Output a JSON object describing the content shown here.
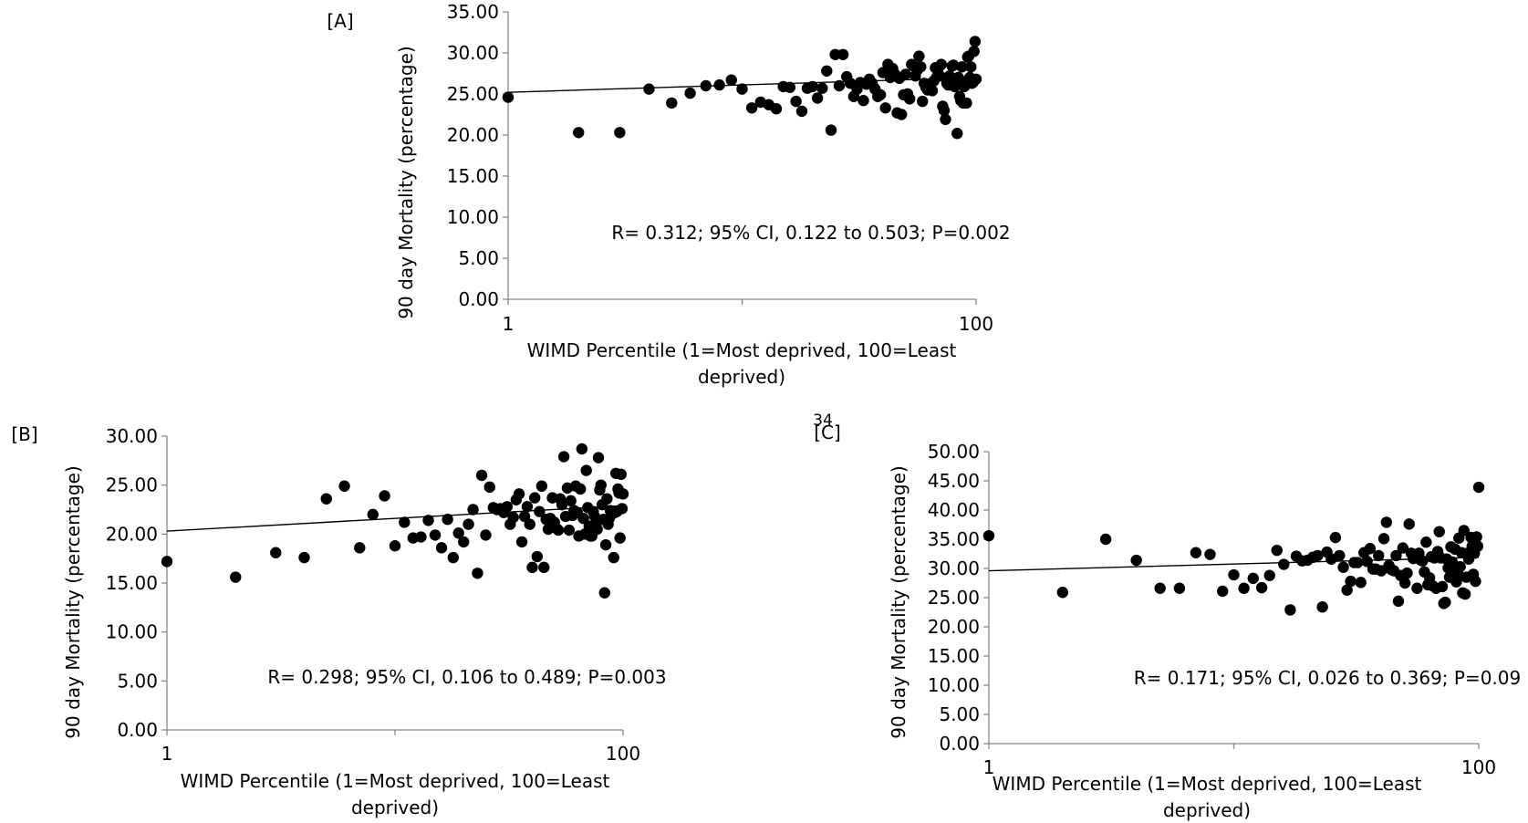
{
  "page_number": "34",
  "chart_data": [
    {
      "panel_label": "[A]",
      "type": "scatter",
      "xlabel": "WIMD Percentile (1=Most deprived, 100=Least deprived)",
      "xlabel_lines": [
        "WIMD Percentile (1=Most deprived, 100=Least",
        "deprived)"
      ],
      "ylabel": "90 day Mortality  (percentage)",
      "x_scale": "log",
      "xlim": [
        1,
        100
      ],
      "ylim": [
        0,
        35
      ],
      "x_ticks": [
        "1",
        "100"
      ],
      "y_ticks": [
        "0.00",
        "5.00",
        "10.00",
        "15.00",
        "20.00",
        "25.00",
        "30.00",
        "35.00"
      ],
      "annotation": "R= 0.312; 95% CI, 0.122 to 0.503; P=0.002",
      "grid": false,
      "legend": "none",
      "trendline": {
        "type": "linear",
        "y_at_x1": 25.2,
        "y_at_x100": 27.0
      },
      "series": [
        {
          "x": [
            1,
            2,
            3,
            4,
            5,
            6,
            7,
            8,
            9,
            10,
            11,
            12,
            13,
            14,
            15,
            16,
            17,
            18,
            19,
            20,
            21,
            22,
            23,
            24,
            25,
            26,
            27,
            28,
            29,
            30,
            31,
            32,
            33,
            34,
            35,
            36,
            37,
            38,
            39,
            40,
            41,
            42,
            43,
            44,
            45,
            46,
            47,
            48,
            49,
            50,
            51,
            52,
            53,
            54,
            55,
            56,
            57,
            58,
            59,
            60,
            61,
            62,
            63,
            64,
            65,
            66,
            67,
            68,
            69,
            70,
            71,
            72,
            73,
            74,
            75,
            76,
            77,
            78,
            79,
            80,
            81,
            82,
            83,
            84,
            85,
            86,
            87,
            88,
            89,
            90,
            91,
            92,
            93,
            94,
            95,
            96,
            97,
            98,
            99,
            100
          ],
          "y": [
            24.6,
            20.3,
            20.3,
            25.6,
            23.9,
            25.1,
            26.0,
            26.1,
            26.7,
            25.6,
            23.3,
            24.0,
            23.7,
            23.2,
            25.9,
            25.8,
            24.1,
            22.9,
            25.7,
            25.9,
            24.5,
            25.7,
            27.8,
            20.6,
            29.8,
            26.0,
            29.8,
            27.1,
            26.3,
            24.7,
            25.6,
            26.4,
            24.2,
            26.2,
            26.8,
            26.3,
            25.6,
            24.7,
            24.9,
            27.6,
            23.3,
            28.6,
            27.0,
            28.1,
            27.4,
            22.7,
            26.9,
            22.5,
            24.9,
            27.4,
            25.0,
            24.4,
            28.6,
            28.4,
            27.2,
            27.9,
            29.6,
            28.3,
            24.1,
            26.3,
            25.8,
            25.5,
            25.9,
            26.2,
            25.4,
            26.6,
            28.2,
            27.1,
            28.2,
            27.2,
            28.6,
            23.5,
            23.0,
            21.9,
            26.3,
            26.1,
            27.2,
            26.1,
            28.4,
            28.5,
            25.9,
            26.4,
            20.2,
            27.0,
            24.7,
            24.2,
            28.3,
            23.9,
            25.9,
            26.4,
            23.9,
            29.5,
            29.6,
            27.0,
            28.3,
            26.3,
            26.4,
            30.2,
            31.4,
            26.8
          ]
        }
      ]
    },
    {
      "panel_label": "[B]",
      "type": "scatter",
      "xlabel": "WIMD Percentile (1=Most deprived, 100=Least deprived)",
      "xlabel_lines": [
        "WIMD Percentile (1=Most deprived, 100=Least",
        "deprived)"
      ],
      "ylabel": "90 day Mortality (percentage)",
      "x_scale": "log",
      "xlim": [
        1,
        100
      ],
      "ylim": [
        0,
        30
      ],
      "x_ticks": [
        "1",
        "100"
      ],
      "y_ticks": [
        "0.00",
        "5.00",
        "10.00",
        "15.00",
        "20.00",
        "25.00",
        "30.00"
      ],
      "annotation": "R= 0.298; 95% CI, 0.106 to 0.489; P=0.003",
      "grid": false,
      "legend": "none",
      "trendline": {
        "type": "linear",
        "y_at_x1": 20.3,
        "y_at_x100": 22.9
      },
      "series": [
        {
          "x": [
            1,
            2,
            3,
            4,
            5,
            6,
            7,
            8,
            9,
            10,
            11,
            12,
            13,
            14,
            15,
            16,
            17,
            18,
            19,
            20,
            21,
            22,
            23,
            24,
            25,
            26,
            27,
            28,
            29,
            30,
            31,
            32,
            33,
            34,
            35,
            36,
            37,
            38,
            39,
            40,
            41,
            42,
            43,
            44,
            45,
            46,
            47,
            48,
            49,
            50,
            51,
            52,
            53,
            54,
            55,
            56,
            57,
            58,
            59,
            60,
            61,
            62,
            63,
            64,
            65,
            66,
            67,
            68,
            69,
            70,
            71,
            72,
            73,
            74,
            75,
            76,
            77,
            78,
            79,
            80,
            81,
            82,
            83,
            84,
            85,
            86,
            87,
            88,
            89,
            90,
            91,
            92,
            93,
            94,
            95,
            96,
            97,
            98,
            99,
            100
          ],
          "y": [
            17.2,
            15.6,
            18.1,
            17.6,
            23.6,
            24.9,
            18.6,
            22.0,
            23.9,
            18.8,
            21.2,
            19.6,
            19.7,
            21.4,
            19.9,
            18.6,
            21.5,
            17.6,
            20.1,
            19.2,
            21.0,
            22.5,
            16.0,
            26.0,
            19.9,
            24.8,
            22.7,
            22.5,
            22.6,
            22.2,
            22.8,
            21.0,
            21.7,
            23.5,
            24.1,
            19.2,
            21.8,
            22.8,
            21.0,
            16.6,
            23.7,
            17.7,
            22.3,
            24.9,
            16.6,
            21.5,
            20.5,
            21.6,
            23.7,
            21.2,
            20.6,
            20.4,
            23.6,
            23.0,
            27.9,
            21.8,
            24.7,
            20.4,
            23.4,
            21.9,
            22.4,
            24.9,
            22.2,
            19.8,
            24.6,
            28.7,
            21.6,
            20.0,
            26.5,
            22.7,
            20.8,
            19.8,
            19.8,
            22.3,
            21.8,
            20.9,
            20.5,
            27.8,
            24.5,
            25.0,
            23.0,
            21.5,
            14.0,
            18.9,
            23.6,
            21.0,
            21.6,
            22.4,
            22.0,
            22.3,
            17.6,
            22.2,
            26.2,
            22.3,
            24.6,
            24.2,
            19.6,
            26.1,
            22.6,
            24.1
          ]
        }
      ]
    },
    {
      "panel_label": "[C]",
      "type": "scatter",
      "xlabel": "WIMD Percentile (1=Most deprived, 100=Least deprived)",
      "xlabel_lines": [
        "WIMD Percentile (1=Most deprived, 100=Least",
        "deprived)"
      ],
      "ylabel": "90 day Mortality (percentage)",
      "x_scale": "log",
      "xlim": [
        1,
        100
      ],
      "ylim": [
        0,
        50
      ],
      "x_ticks": [
        "1",
        "100"
      ],
      "y_ticks": [
        "0.00",
        "5.00",
        "10.00",
        "15.00",
        "20.00",
        "25.00",
        "30.00",
        "35.00",
        "40.00",
        "45.00",
        "50.00"
      ],
      "annotation": "R= 0.171; 95% CI, 0.026 to 0.369; P=0.09",
      "grid": false,
      "legend": "none",
      "trendline": {
        "type": "linear",
        "y_at_x1": 29.6,
        "y_at_x100": 31.9
      },
      "series": [
        {
          "x": [
            1,
            2,
            3,
            4,
            5,
            6,
            7,
            8,
            9,
            10,
            11,
            12,
            13,
            14,
            15,
            16,
            17,
            18,
            19,
            20,
            21,
            22,
            23,
            24,
            25,
            26,
            27,
            28,
            29,
            30,
            31,
            32,
            33,
            34,
            35,
            36,
            37,
            38,
            39,
            40,
            41,
            42,
            43,
            44,
            45,
            46,
            47,
            48,
            49,
            50,
            51,
            52,
            53,
            54,
            55,
            56,
            57,
            58,
            59,
            60,
            61,
            62,
            63,
            64,
            65,
            66,
            67,
            68,
            69,
            70,
            71,
            72,
            73,
            74,
            75,
            76,
            77,
            78,
            79,
            80,
            81,
            82,
            83,
            84,
            85,
            86,
            87,
            88,
            89,
            90,
            91,
            92,
            93,
            94,
            95,
            96,
            97,
            98,
            99,
            100
          ],
          "y": [
            35.6,
            25.9,
            35.0,
            31.4,
            26.6,
            26.6,
            32.7,
            32.4,
            26.1,
            28.9,
            26.6,
            28.3,
            26.7,
            28.8,
            33.1,
            30.7,
            22.9,
            32.1,
            31.3,
            31.4,
            31.9,
            32.2,
            23.4,
            32.8,
            31.6,
            35.3,
            32.2,
            30.2,
            26.3,
            27.8,
            31.0,
            31.0,
            27.6,
            32.7,
            31.2,
            33.4,
            29.9,
            29.9,
            32.2,
            29.6,
            35.1,
            37.9,
            30.5,
            29.8,
            29.6,
            32.2,
            24.4,
            28.8,
            33.5,
            27.5,
            29.2,
            37.6,
            32.6,
            31.7,
            32.1,
            26.6,
            32.6,
            31.4,
            31.3,
            29.4,
            34.5,
            27.2,
            28.4,
            32.0,
            27.0,
            31.8,
            26.6,
            32.9,
            36.3,
            31.8,
            26.9,
            24.0,
            24.2,
            31.6,
            30.1,
            28.5,
            33.7,
            31.1,
            30.3,
            33.3,
            27.7,
            29.1,
            35.2,
            30.3,
            32.7,
            25.8,
            36.5,
            25.6,
            28.5,
            32.6,
            31.6,
            32.3,
            35.3,
            33.8,
            29.0,
            32.6,
            27.8,
            35.4,
            33.8,
            43.9
          ]
        }
      ]
    }
  ]
}
